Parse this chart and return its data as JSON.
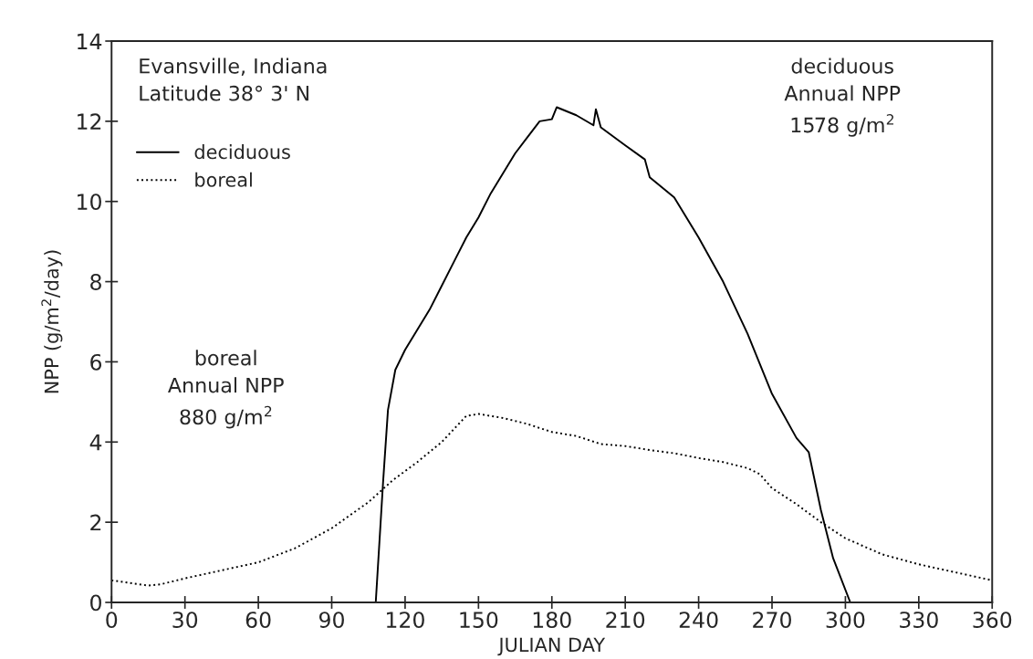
{
  "chart_data": {
    "type": "line",
    "xlabel": "JULIAN DAY",
    "ylabel": "NPP (g/m$^{2}$/day)",
    "xlim": [
      0,
      360
    ],
    "xticks": [
      0,
      30,
      60,
      90,
      120,
      150,
      180,
      210,
      240,
      270,
      300,
      330,
      360
    ],
    "ylim": [
      0,
      14
    ],
    "yticks": [
      0,
      2,
      4,
      6,
      8,
      10,
      12,
      14
    ],
    "grid": false,
    "legend": "top left",
    "annotations": [
      "Evansville, Indiana\nLatitude 38° 3' N",
      "deciduous\nAnnual NPP\n1578 g/m$^{2}$",
      "boreal\nAnnual NPP\n880 g/m$^{2}$"
    ],
    "series": [
      {
        "name": "deciduous",
        "color": "#000000",
        "line_style": "solid",
        "x": [
          108,
          111,
          113,
          116,
          120,
          125,
          130,
          135,
          140,
          145,
          150,
          155,
          160,
          165,
          170,
          175,
          180,
          182,
          190,
          197,
          198,
          200,
          210,
          218,
          220,
          230,
          240,
          250,
          260,
          270,
          280,
          285,
          290,
          295,
          302
        ],
        "values": [
          0,
          3,
          4.8,
          5.8,
          6.3,
          6.8,
          7.3,
          7.9,
          8.5,
          9.1,
          9.6,
          10.2,
          10.7,
          11.2,
          11.6,
          12.0,
          12.05,
          12.35,
          12.15,
          11.9,
          12.3,
          11.85,
          11.4,
          11.05,
          10.6,
          10.1,
          9.1,
          8.0,
          6.7,
          5.2,
          4.1,
          3.75,
          2.3,
          1.1,
          0
        ]
      },
      {
        "name": "boreal",
        "color": "#000000",
        "line_style": "dotted",
        "x": [
          0,
          15,
          20,
          30,
          45,
          60,
          75,
          90,
          105,
          115,
          125,
          135,
          145,
          150,
          160,
          170,
          180,
          190,
          200,
          210,
          220,
          230,
          240,
          250,
          260,
          265,
          270,
          280,
          290,
          300,
          315,
          330,
          345,
          360
        ],
        "values": [
          0.55,
          0.42,
          0.45,
          0.6,
          0.8,
          1.0,
          1.35,
          1.85,
          2.5,
          3.05,
          3.5,
          4.0,
          4.65,
          4.7,
          4.6,
          4.45,
          4.25,
          4.15,
          3.95,
          3.9,
          3.8,
          3.72,
          3.6,
          3.5,
          3.35,
          3.2,
          2.85,
          2.45,
          2.0,
          1.6,
          1.2,
          0.95,
          0.75,
          0.55
        ]
      }
    ]
  }
}
